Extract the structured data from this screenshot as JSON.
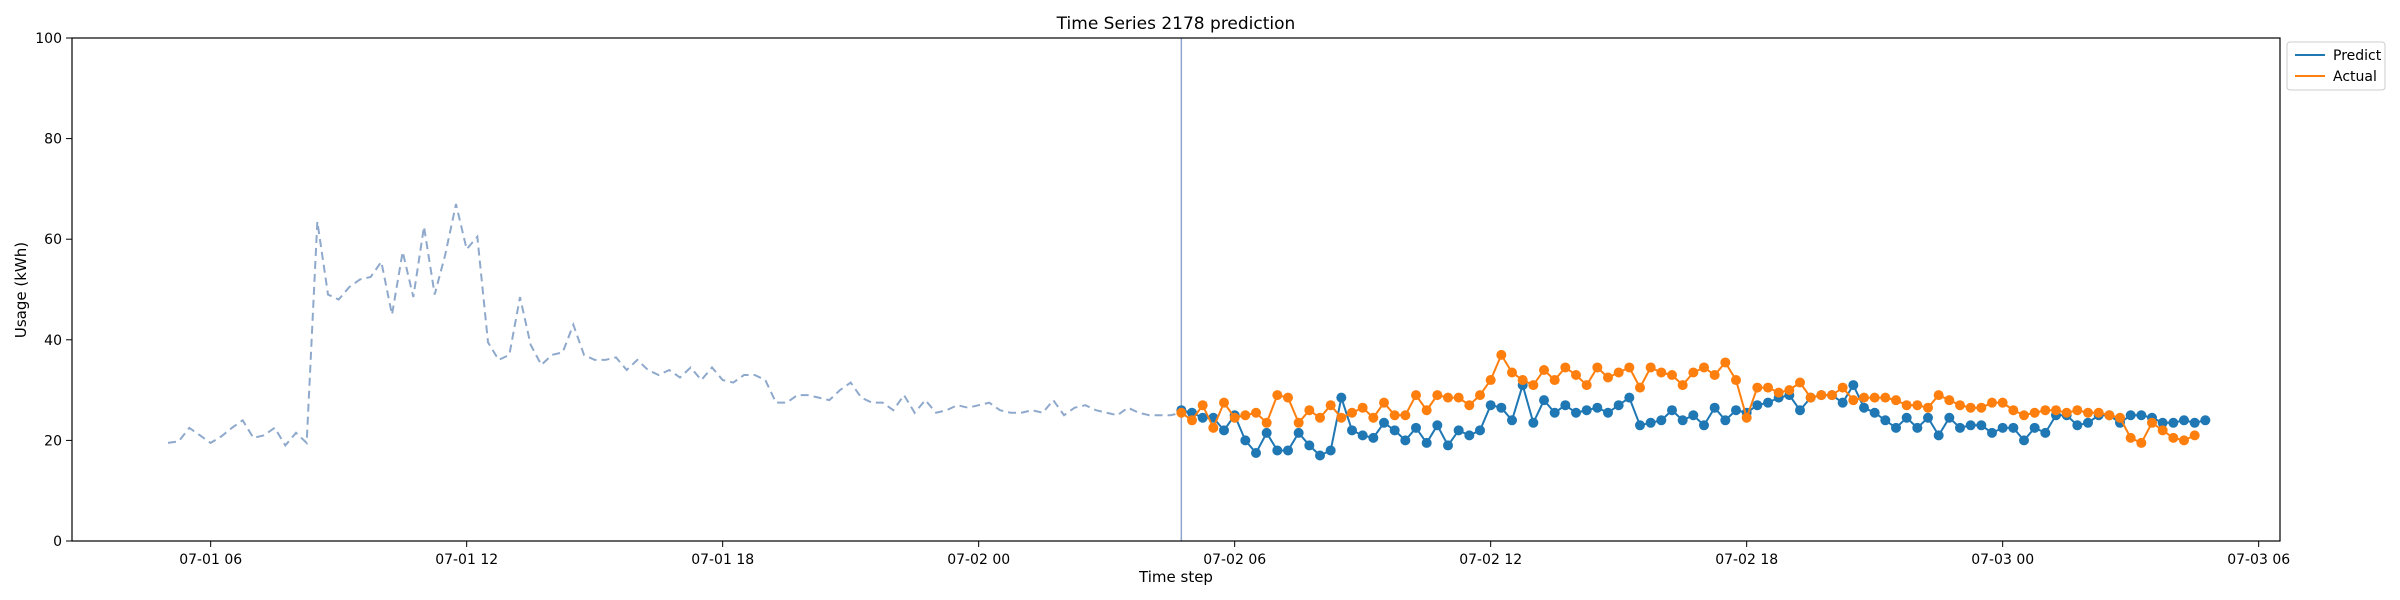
{
  "chart_data": {
    "type": "line",
    "title": "Time Series 2178 prediction",
    "xlabel": "Time step",
    "ylabel": "Usage (kWh)",
    "ylim": [
      0,
      100
    ],
    "yticks": [
      0,
      20,
      40,
      60,
      80,
      100
    ],
    "xlim": [
      "2024-07-01T02:45",
      "2024-07-03T06:30"
    ],
    "xticks": [
      {
        "t": "2024-07-01T06:00",
        "label": "07-01 06"
      },
      {
        "t": "2024-07-01T12:00",
        "label": "07-01 12"
      },
      {
        "t": "2024-07-01T18:00",
        "label": "07-01 18"
      },
      {
        "t": "2024-07-02T00:00",
        "label": "07-02 00"
      },
      {
        "t": "2024-07-02T06:00",
        "label": "07-02 06"
      },
      {
        "t": "2024-07-02T12:00",
        "label": "07-02 12"
      },
      {
        "t": "2024-07-02T18:00",
        "label": "07-02 18"
      },
      {
        "t": "2024-07-03T00:00",
        "label": "07-03 00"
      },
      {
        "t": "2024-07-03T06:00",
        "label": "07-03 06"
      }
    ],
    "grid": false,
    "legend_position": "outside-top-right",
    "split_time": "2024-07-02T04:45",
    "history": {
      "style": "dashed",
      "color": "#8fa9cc",
      "start": "2024-07-01T05:00",
      "step_minutes": 15,
      "values": [
        19.5,
        19.8,
        22.5,
        21.0,
        19.5,
        20.8,
        22.5,
        24.0,
        20.5,
        21.0,
        22.5,
        19.0,
        21.5,
        19.5,
        63.5,
        49.0,
        48.0,
        50.5,
        52.0,
        52.5,
        55.5,
        45.0,
        57.5,
        48.5,
        62.5,
        49.0,
        57.0,
        67.0,
        58.0,
        60.5,
        39.5,
        36.0,
        37.0,
        48.5,
        39.0,
        35.0,
        37.0,
        37.5,
        43.0,
        37.0,
        36.0,
        36.0,
        36.5,
        34.0,
        36.0,
        34.0,
        33.0,
        34.0,
        32.5,
        34.5,
        32.0,
        34.5,
        32.0,
        31.5,
        33.0,
        33.0,
        32.0,
        27.5,
        27.5,
        29.0,
        29.0,
        28.5,
        28.0,
        30.0,
        31.5,
        28.5,
        27.5,
        27.5,
        26.0,
        29.0,
        25.5,
        28.0,
        25.5,
        26.0,
        27.0,
        26.5,
        27.0,
        27.5,
        26.0,
        25.5,
        25.5,
        26.0,
        25.5,
        28.0,
        25.0,
        26.5,
        27.0,
        26.0,
        25.5,
        25.0,
        26.5,
        25.5,
        25.0,
        25.0,
        25.0,
        25.5,
        25.5
      ]
    },
    "series": [
      {
        "name": "Predict",
        "color": "#1f77b4",
        "start": "2024-07-02T04:45",
        "step_minutes": 15,
        "values": [
          26.0,
          25.5,
          24.5,
          24.5,
          22.0,
          25.0,
          20.0,
          17.5,
          21.5,
          18.0,
          18.0,
          21.5,
          19.0,
          17.0,
          18.0,
          28.5,
          22.0,
          21.0,
          20.5,
          23.5,
          22.0,
          20.0,
          22.5,
          19.5,
          23.0,
          19.0,
          22.0,
          21.0,
          22.0,
          27.0,
          26.5,
          24.0,
          31.0,
          23.5,
          28.0,
          25.5,
          27.0,
          25.5,
          26.0,
          26.5,
          25.5,
          27.0,
          28.5,
          23.0,
          23.5,
          24.0,
          26.0,
          24.0,
          25.0,
          23.0,
          26.5,
          24.0,
          26.0,
          25.5,
          27.0,
          27.5,
          28.5,
          29.0,
          26.0,
          28.5,
          29.0,
          29.0,
          27.5,
          31.0,
          26.5,
          25.5,
          24.0,
          22.5,
          24.5,
          22.5,
          24.5,
          21.0,
          24.5,
          22.5,
          23.0,
          23.0,
          21.5,
          22.5,
          22.5,
          20.0,
          22.5,
          21.5,
          25.0,
          25.0,
          23.0,
          23.5,
          25.0,
          25.0,
          23.5,
          25.0,
          25.0,
          24.5,
          23.5,
          23.5,
          24.0,
          23.5,
          24.0
        ]
      },
      {
        "name": "Actual",
        "color": "#ff7f0e",
        "start": "2024-07-02T04:45",
        "step_minutes": 15,
        "values": [
          25.5,
          24.0,
          27.0,
          22.5,
          27.5,
          24.5,
          25.0,
          25.5,
          23.5,
          29.0,
          28.5,
          23.5,
          26.0,
          24.5,
          27.0,
          24.5,
          25.5,
          26.5,
          24.5,
          27.5,
          25.0,
          25.0,
          29.0,
          26.0,
          29.0,
          28.5,
          28.5,
          27.0,
          29.0,
          32.0,
          37.0,
          33.5,
          32.0,
          31.0,
          34.0,
          32.0,
          34.5,
          33.0,
          31.0,
          34.5,
          32.5,
          33.5,
          34.5,
          30.5,
          34.5,
          33.5,
          33.0,
          31.0,
          33.5,
          34.5,
          33.0,
          35.5,
          32.0,
          24.5,
          30.5,
          30.5,
          29.5,
          30.0,
          31.5,
          28.5,
          29.0,
          29.0,
          30.5,
          28.0,
          28.5,
          28.5,
          28.5,
          28.0,
          27.0,
          27.0,
          26.5,
          29.0,
          28.0,
          27.0,
          26.5,
          26.5,
          27.5,
          27.5,
          26.0,
          25.0,
          25.5,
          26.0,
          26.0,
          25.5,
          26.0,
          25.5,
          25.5,
          25.0,
          24.5,
          20.5,
          19.5,
          23.5,
          22.0,
          20.5,
          20.0,
          21.0
        ]
      }
    ]
  }
}
